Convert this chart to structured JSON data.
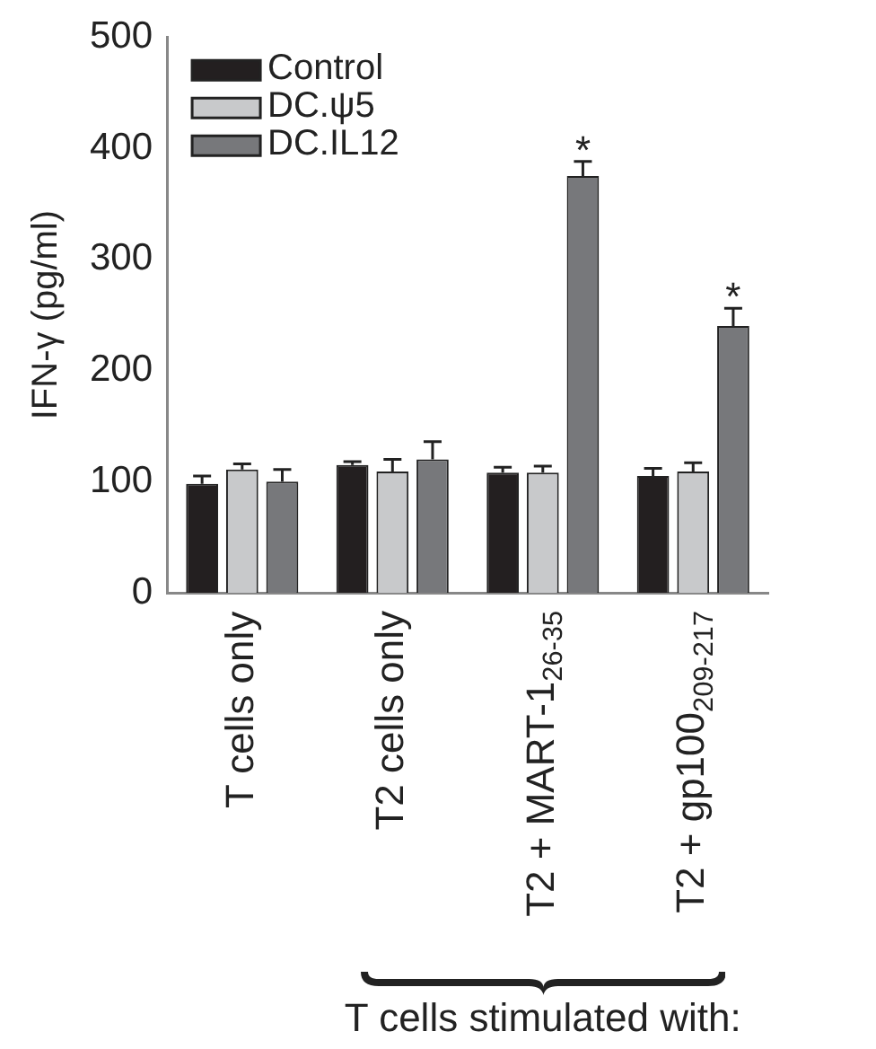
{
  "chart_data": {
    "type": "bar",
    "ylabel": "IFN-γ (pg/ml)",
    "categories": [
      "T cells only",
      "T2 cells only",
      "T2 + MART-1$_{26-35}$",
      "T2 + gp100$_{209-217}$"
    ],
    "series": [
      {
        "name": "Control",
        "color": "#231f20",
        "values": [
          98,
          115,
          108,
          105
        ],
        "errors": [
          7,
          3,
          5,
          7
        ]
      },
      {
        "name": "DC.ψ5",
        "color": "#c8c9cb",
        "values": [
          111,
          109,
          108,
          109
        ],
        "errors": [
          5,
          11,
          6,
          8
        ]
      },
      {
        "name": "DC.IL12",
        "color": "#77787b",
        "values": [
          100,
          120,
          375,
          240
        ],
        "errors": [
          11,
          16,
          13,
          16
        ],
        "value_labels": [
          null,
          null,
          "*",
          "*"
        ]
      }
    ],
    "ylim": [
      0,
      500
    ],
    "yticks": [
      0,
      100,
      200,
      300,
      400,
      500
    ],
    "grid": false,
    "legend": "top left",
    "annotations": [
      "T cells stimulated with:"
    ]
  }
}
